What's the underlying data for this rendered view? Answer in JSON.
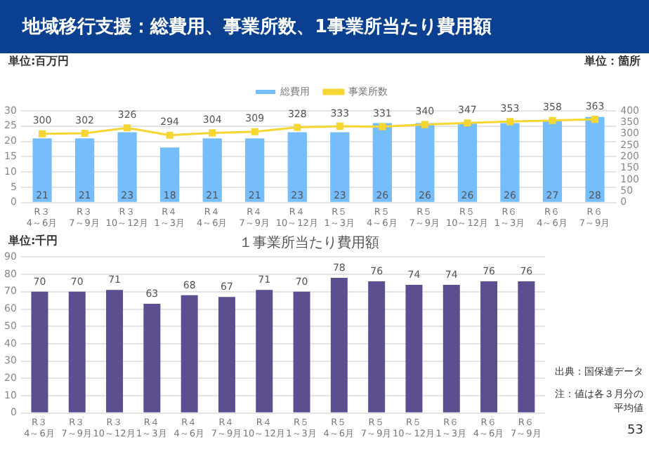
{
  "chart_data": [
    {
      "type": "bar",
      "title": "地域移行支援：総費用、事業所数、1事業所当たり費用額",
      "ylabel": "単位:百万円",
      "y2label": "単位：箇所",
      "categories": [
        "R３\n4～6月",
        "R３\n7～9月",
        "R３\n10～12月",
        "R４\n1～3月",
        "R４\n4～6月",
        "R４\n7～9月",
        "R４\n10～12月",
        "R５\n1～3月",
        "R５\n4～6月",
        "R５\n7～9月",
        "R５\n10～12月",
        "R６\n1～3月",
        "R６\n4～6月",
        "R６\n7～9月"
      ],
      "series": [
        {
          "name": "総費用",
          "color": "#75bdfb",
          "values": [
            21,
            21,
            23,
            18,
            21,
            21,
            23,
            23,
            26,
            26,
            26,
            26,
            27,
            28
          ]
        },
        {
          "name": "事業所数",
          "type": "line",
          "axis": "y2",
          "color": "#f5d633",
          "values": [
            300,
            302,
            326,
            294,
            304,
            309,
            328,
            333,
            331,
            340,
            347,
            353,
            358,
            363
          ]
        }
      ],
      "ylim": [
        0,
        30
      ],
      "yticks": [
        0,
        5,
        10,
        15,
        20,
        25,
        30
      ],
      "y2lim": [
        0,
        400
      ],
      "y2ticks": [
        0,
        50,
        100,
        150,
        200,
        250,
        300,
        350,
        400
      ],
      "grid": "y",
      "legend": "top",
      "marker": "square",
      "data_labels": true
    },
    {
      "type": "bar",
      "title": "１事業所当たり費用額",
      "ylabel": "単位:千円",
      "categories": [
        "R３\n4～6月",
        "R３\n7～9月",
        "R３\n10～12月",
        "R４\n1～3月",
        "R４\n4～6月",
        "R４\n7～9月",
        "R４\n10～12月",
        "R５\n1～3月",
        "R５\n4～6月",
        "R５\n7～9月",
        "R５\n10～12月",
        "R６\n1～3月",
        "R６\n4～6月",
        "R６\n7～9月"
      ],
      "series": [
        {
          "color": "#5c4e8f",
          "values": [
            70,
            70,
            71,
            63,
            68,
            67,
            71,
            70,
            78,
            76,
            74,
            74,
            76,
            76
          ]
        }
      ],
      "ylim": [
        0,
        90
      ],
      "yticks": [
        0,
        10,
        20,
        30,
        40,
        50,
        60,
        70,
        80,
        90
      ],
      "grid": "y",
      "data_labels": true,
      "annotations": [
        "出典：国保連データ",
        "注：値は各３月分の平均値",
        "53"
      ]
    }
  ]
}
